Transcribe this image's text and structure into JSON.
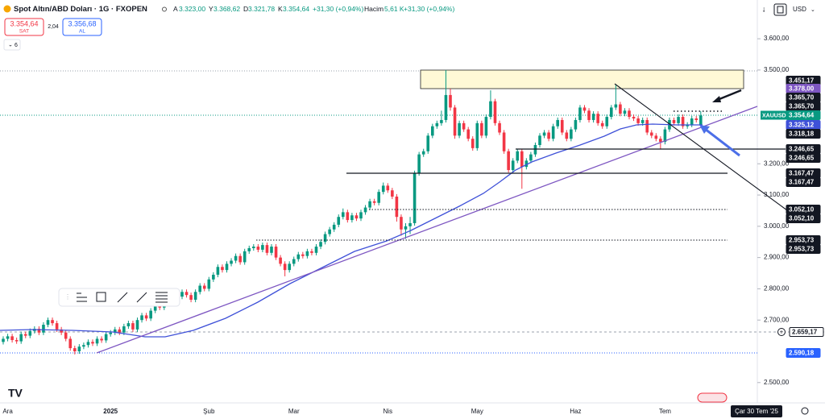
{
  "header": {
    "title": "Spot Altın/ABD Doları · 1G · FXOPEN",
    "o_key": "A",
    "o": "3.323,00",
    "h_key": "Y",
    "h": "3.368,62",
    "l_key": "D",
    "l": "3.321,78",
    "c_key": "K",
    "c": "3.354,64",
    "change": "+31,30 (+0,94%)",
    "volume_key": "Hacim",
    "volume": "5,61 K",
    "volume_change": "+31,30 (+0,94%)",
    "sell_price": "3.354,64",
    "sell": "SAT",
    "spread": "2,04",
    "buy_price": "3.356,68",
    "buy": "AL",
    "indicators": "6",
    "currency": "USD",
    "cursor_date": "Çar 30 Tem '25",
    "symbol_tag": "XAUUSD"
  },
  "price_tags": [
    "3.451,17",
    "3.378,00",
    "3.365,70",
    "3.365,70",
    "3.354,64",
    "3.325,12",
    "3.318,18",
    "3.246,65",
    "3.246,65",
    "3.167,47",
    "3.167,47",
    "3.052,10",
    "3.052,10",
    "2.953,73",
    "2.953,73",
    "2.659,17",
    "2.590,18"
  ],
  "chart_data": {
    "type": "candlestick",
    "up_color": "#089981",
    "down_color": "#f23645",
    "ylim": [
      2435,
      3724
    ],
    "yticks": [
      {
        "value": 3600,
        "label": "3.600,00"
      },
      {
        "value": 3500,
        "label": "3.500,00"
      },
      {
        "value": 3200,
        "label": "3.200,00"
      },
      {
        "value": 3100,
        "label": "3.100,00"
      },
      {
        "value": 3000,
        "label": "3.000,00"
      },
      {
        "value": 2900,
        "label": "2.900,00"
      },
      {
        "value": 2800,
        "label": "2.800,00"
      },
      {
        "value": 2700,
        "label": "2.700,00"
      },
      {
        "value": 2500,
        "label": "2.500,00"
      }
    ],
    "categories": [
      null,
      "Ara",
      null,
      null,
      null,
      null,
      null,
      null,
      null,
      null,
      null,
      null,
      null,
      null,
      null,
      null,
      null,
      null,
      null,
      null,
      null,
      null,
      null,
      null,
      "2025",
      null,
      null,
      null,
      null,
      null,
      null,
      null,
      null,
      null,
      null,
      null,
      null,
      null,
      null,
      null,
      null,
      null,
      null,
      null,
      null,
      null,
      "Şub",
      null,
      null,
      null,
      null,
      null,
      null,
      null,
      null,
      null,
      null,
      null,
      null,
      null,
      null,
      null,
      null,
      null,
      null,
      "Mar",
      null,
      null,
      null,
      null,
      null,
      null,
      null,
      null,
      null,
      null,
      null,
      null,
      null,
      null,
      null,
      null,
      null,
      null,
      null,
      null,
      "Nis",
      null,
      null,
      null,
      null,
      null,
      null,
      null,
      null,
      null,
      null,
      null,
      null,
      null,
      null,
      null,
      null,
      null,
      null,
      null,
      "May",
      null,
      null,
      null,
      null,
      null,
      null,
      null,
      null,
      null,
      null,
      null,
      null,
      null,
      null,
      null,
      null,
      null,
      null,
      null,
      null,
      null,
      "Haz",
      null,
      null,
      null,
      null,
      null,
      null,
      null,
      null,
      null,
      null,
      null,
      null,
      null,
      null,
      null,
      null,
      null,
      null,
      null,
      "Tem",
      null,
      null,
      null,
      null,
      null,
      null,
      null,
      null
    ],
    "open": [
      2630,
      2640,
      2648,
      2636,
      2632,
      2655,
      2650,
      2665,
      2672,
      2660,
      2685,
      2700,
      2690,
      2670,
      2660,
      2640,
      2610,
      2600,
      2615,
      2620,
      2630,
      2625,
      2640,
      2635,
      2655,
      2660,
      2670,
      2660,
      2680,
      2690,
      2670,
      2700,
      2715,
      2705,
      2730,
      2745,
      2740,
      2755,
      2770,
      2760,
      2775,
      2790,
      2780,
      2765,
      2790,
      2810,
      2800,
      2830,
      2845,
      2870,
      2860,
      2880,
      2890,
      2905,
      2885,
      2920,
      2930,
      2935,
      2925,
      2940,
      2915,
      2935,
      2900,
      2880,
      2860,
      2880,
      2895,
      2910,
      2905,
      2920,
      2915,
      2935,
      2950,
      2975,
      2990,
      3005,
      3030,
      3045,
      3020,
      3035,
      3025,
      3045,
      3060,
      3080,
      3075,
      3110,
      3130,
      3115,
      3095,
      3030,
      2990,
      3000,
      3010,
      3170,
      3230,
      3240,
      3290,
      3320,
      3330,
      3340,
      3420,
      3380,
      3290,
      3330,
      3310,
      3280,
      3250,
      3330,
      3290,
      3350,
      3400,
      3330,
      3300,
      3240,
      3180,
      3210,
      3240,
      3190,
      3210,
      3230,
      3260,
      3290,
      3300,
      3280,
      3320,
      3340,
      3300,
      3280,
      3310,
      3340,
      3380,
      3370,
      3340,
      3360,
      3330,
      3320,
      3350,
      3380,
      3390,
      3360,
      3370,
      3350,
      3345,
      3330,
      3340,
      3300,
      3290,
      3280,
      3270,
      3310,
      3340,
      3330,
      3350,
      3320,
      3325,
      3345,
      3323
    ],
    "high": [
      2648,
      2656,
      2656,
      2644,
      2663,
      2663,
      2673,
      2680,
      2680,
      2693,
      2708,
      2708,
      2698,
      2678,
      2668,
      2648,
      2618,
      2623,
      2628,
      2638,
      2638,
      2648,
      2648,
      2663,
      2668,
      2678,
      2678,
      2688,
      2698,
      2698,
      2708,
      2723,
      2723,
      2738,
      2753,
      2753,
      2763,
      2778,
      2778,
      2783,
      2798,
      2798,
      2788,
      2798,
      2818,
      2818,
      2838,
      2853,
      2878,
      2878,
      2888,
      2898,
      2913,
      2913,
      2928,
      2938,
      2943,
      2943,
      2948,
      2948,
      2943,
      2943,
      2908,
      2888,
      2888,
      2903,
      2918,
      2918,
      2928,
      2928,
      2943,
      2958,
      2983,
      2998,
      3013,
      3038,
      3057,
      3053,
      3043,
      3043,
      3053,
      3068,
      3088,
      3088,
      3118,
      3140,
      3138,
      3123,
      3103,
      3038,
      3010,
      3030,
      3178,
      3238,
      3248,
      3298,
      3328,
      3338,
      3370,
      3500,
      3440,
      3388,
      3338,
      3338,
      3318,
      3288,
      3338,
      3338,
      3358,
      3435,
      3408,
      3338,
      3308,
      3248,
      3218,
      3248,
      3248,
      3218,
      3238,
      3268,
      3298,
      3308,
      3308,
      3328,
      3348,
      3348,
      3308,
      3318,
      3348,
      3388,
      3388,
      3378,
      3368,
      3368,
      3338,
      3358,
      3388,
      3452,
      3398,
      3378,
      3378,
      3358,
      3353,
      3348,
      3348,
      3308,
      3298,
      3288,
      3318,
      3348,
      3348,
      3358,
      3358,
      3333,
      3353,
      3353,
      3368.62
    ],
    "low": [
      2622,
      2632,
      2628,
      2624,
      2624,
      2642,
      2642,
      2657,
      2652,
      2652,
      2677,
      2682,
      2662,
      2652,
      2632,
      2602,
      2590,
      2592,
      2607,
      2612,
      2617,
      2617,
      2627,
      2627,
      2647,
      2652,
      2652,
      2652,
      2672,
      2662,
      2662,
      2692,
      2697,
      2697,
      2722,
      2732,
      2732,
      2747,
      2752,
      2752,
      2767,
      2772,
      2757,
      2757,
      2782,
      2792,
      2792,
      2822,
      2837,
      2852,
      2852,
      2872,
      2882,
      2877,
      2877,
      2912,
      2922,
      2917,
      2917,
      2907,
      2907,
      2892,
      2872,
      2840,
      2852,
      2872,
      2887,
      2897,
      2897,
      2907,
      2907,
      2927,
      2942,
      2967,
      2982,
      2997,
      3022,
      3012,
      3012,
      3017,
      3017,
      3037,
      3052,
      3067,
      3067,
      3102,
      3107,
      3087,
      3015,
      2970,
      2960,
      2975,
      3002,
      3162,
      3222,
      3232,
      3282,
      3312,
      3322,
      3332,
      3370,
      3280,
      3282,
      3302,
      3272,
      3242,
      3242,
      3282,
      3282,
      3342,
      3322,
      3292,
      3232,
      3172,
      3172,
      3202,
      3120,
      3182,
      3202,
      3222,
      3252,
      3282,
      3272,
      3272,
      3312,
      3292,
      3272,
      3272,
      3302,
      3332,
      3362,
      3332,
      3332,
      3322,
      3312,
      3312,
      3342,
      3372,
      3352,
      3352,
      3342,
      3337,
      3322,
      3322,
      3292,
      3282,
      3272,
      3248,
      3262,
      3302,
      3322,
      3322,
      3312,
      3312,
      3317,
      3332,
      3321.78
    ],
    "close": [
      2640,
      2648,
      2636,
      2632,
      2655,
      2650,
      2665,
      2672,
      2660,
      2685,
      2700,
      2690,
      2670,
      2660,
      2640,
      2610,
      2600,
      2615,
      2620,
      2630,
      2625,
      2640,
      2635,
      2655,
      2660,
      2670,
      2660,
      2680,
      2690,
      2670,
      2700,
      2715,
      2705,
      2730,
      2745,
      2740,
      2755,
      2770,
      2760,
      2775,
      2790,
      2780,
      2765,
      2790,
      2810,
      2800,
      2830,
      2845,
      2870,
      2860,
      2880,
      2890,
      2905,
      2885,
      2920,
      2930,
      2935,
      2925,
      2940,
      2915,
      2935,
      2900,
      2880,
      2860,
      2880,
      2895,
      2910,
      2905,
      2920,
      2915,
      2935,
      2950,
      2975,
      2990,
      3005,
      3030,
      3045,
      3020,
      3035,
      3025,
      3045,
      3060,
      3080,
      3075,
      3110,
      3130,
      3115,
      3095,
      3030,
      2990,
      3000,
      3010,
      3170,
      3230,
      3240,
      3290,
      3320,
      3330,
      3340,
      3420,
      3380,
      3290,
      3330,
      3310,
      3280,
      3250,
      3330,
      3290,
      3350,
      3400,
      3330,
      3300,
      3240,
      3180,
      3210,
      3240,
      3190,
      3210,
      3230,
      3260,
      3290,
      3300,
      3280,
      3320,
      3340,
      3300,
      3280,
      3310,
      3340,
      3380,
      3370,
      3340,
      3360,
      3330,
      3320,
      3350,
      3380,
      3390,
      3360,
      3370,
      3350,
      3345,
      3330,
      3340,
      3300,
      3290,
      3280,
      3270,
      3310,
      3340,
      3330,
      3350,
      3320,
      3325,
      3345,
      3340,
      3354.64
    ]
  }
}
